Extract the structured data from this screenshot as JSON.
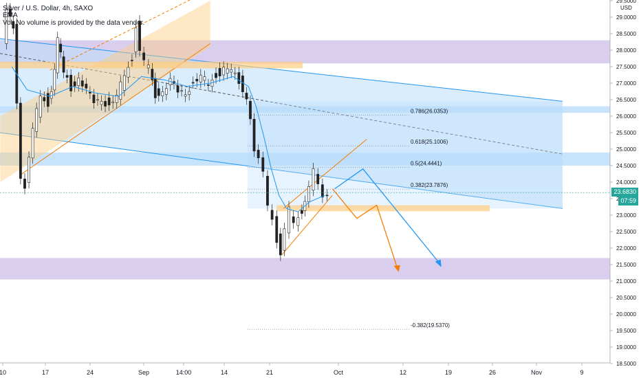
{
  "header": {
    "symbol_line": "Silver / U.S. Dollar, 4h, SAXO",
    "indicator": "EMA",
    "volume_note": "Vol: No volume is provided by the data vendor."
  },
  "axis": {
    "currency": "USD",
    "current_price": "23.6830",
    "countdown": "07:59"
  },
  "chart_data": {
    "type": "line",
    "title": "Silver / U.S. Dollar, 4h, SAXO",
    "xlabel": "",
    "ylabel": "",
    "ylim": [
      18.5,
      29.5
    ],
    "y_ticks": [
      "29.5000",
      "29.0000",
      "28.5000",
      "28.0000",
      "27.5000",
      "27.0000",
      "26.5000",
      "26.0000",
      "25.5000",
      "25.0000",
      "24.5000",
      "24.0000",
      "23.5000",
      "23.0000",
      "22.5000",
      "22.0000",
      "21.5000",
      "21.0000",
      "20.5000",
      "20.0000",
      "19.5000",
      "19.0000",
      "18.5000"
    ],
    "x_ticks": [
      "10",
      "17",
      "24",
      "Sep",
      "14:00",
      "14",
      "21",
      "Oct",
      "12",
      "19",
      "26",
      "Nov",
      "9"
    ],
    "price_path": [
      [
        0,
        28.2
      ],
      [
        0.6,
        29.1
      ],
      [
        1.4,
        28.8
      ],
      [
        2.4,
        24.2
      ],
      [
        3.0,
        23.9
      ],
      [
        4.0,
        25.5
      ],
      [
        5.0,
        26.7
      ],
      [
        6.0,
        26.4
      ],
      [
        6.8,
        27.3
      ],
      [
        7.2,
        28.3
      ],
      [
        8.0,
        27.3
      ],
      [
        9.0,
        26.9
      ],
      [
        10.0,
        27.2
      ],
      [
        11.0,
        26.7
      ],
      [
        12.0,
        26.4
      ],
      [
        13.0,
        26.6
      ],
      [
        14.0,
        26.3
      ],
      [
        15.0,
        26.5
      ],
      [
        16.0,
        27.3
      ],
      [
        17.0,
        27.8
      ],
      [
        17.5,
        28.8
      ],
      [
        18.0,
        28.0
      ],
      [
        18.6,
        27.6
      ],
      [
        19.2,
        27.4
      ],
      [
        20.0,
        26.7
      ],
      [
        21.0,
        26.8
      ],
      [
        22.0,
        27.0
      ],
      [
        23.0,
        26.7
      ],
      [
        24.0,
        26.8
      ],
      [
        25.0,
        27.0
      ],
      [
        26.0,
        27.1
      ],
      [
        27.0,
        27.0
      ],
      [
        28.0,
        27.3
      ],
      [
        29.0,
        27.4
      ],
      [
        30.0,
        27.3
      ],
      [
        31.0,
        27.1
      ],
      [
        32.0,
        26.6
      ],
      [
        32.5,
        26.0
      ],
      [
        33.0,
        24.9
      ],
      [
        33.6,
        24.6
      ],
      [
        34.2,
        24.2
      ],
      [
        34.8,
        23.3
      ],
      [
        35.4,
        23.0
      ],
      [
        36.0,
        22.3
      ],
      [
        36.4,
        21.8
      ],
      [
        37.0,
        22.5
      ],
      [
        37.6,
        23.1
      ],
      [
        38.2,
        22.7
      ],
      [
        38.8,
        23.0
      ],
      [
        39.6,
        23.4
      ],
      [
        40.2,
        23.9
      ],
      [
        40.8,
        24.3
      ],
      [
        41.4,
        23.8
      ],
      [
        42.0,
        23.5
      ],
      [
        42.6,
        23.7
      ]
    ],
    "ema_path": [
      [
        1,
        27.5
      ],
      [
        3,
        26.8
      ],
      [
        6,
        26.6
      ],
      [
        9,
        26.9
      ],
      [
        12,
        26.7
      ],
      [
        15,
        26.6
      ],
      [
        18,
        27.2
      ],
      [
        21,
        27.1
      ],
      [
        24,
        26.9
      ],
      [
        27,
        27.0
      ],
      [
        30,
        27.2
      ],
      [
        32,
        26.9
      ],
      [
        33,
        26.3
      ],
      [
        34,
        25.4
      ],
      [
        35,
        24.4
      ],
      [
        36,
        23.6
      ],
      [
        37,
        23.2
      ],
      [
        38.5,
        23.1
      ],
      [
        40,
        23.4
      ],
      [
        42,
        23.6
      ]
    ],
    "fibonacci": [
      {
        "label": "0.786(26.0353)",
        "value": 26.0353
      },
      {
        "label": "0.618(25.1006)",
        "value": 25.1006
      },
      {
        "label": "0.5(24.4441)",
        "value": 24.4441
      },
      {
        "label": "0.382(23.7876)",
        "value": 23.7876
      },
      {
        "label": "-0.382(19.5370)",
        "value": 19.537
      }
    ],
    "zones": [
      {
        "name": "resistance-zone",
        "from": 27.6,
        "to": 28.3,
        "color": "#b39ddb"
      },
      {
        "name": "level-26",
        "from": 26.1,
        "to": 26.3,
        "color": "#90caf9"
      },
      {
        "name": "level-24-6",
        "from": 24.5,
        "to": 24.9,
        "color": "#90caf9"
      },
      {
        "name": "support-zone",
        "from": 21.05,
        "to": 21.7,
        "color": "#b39ddb"
      }
    ],
    "colors": {
      "up": "#26a69a",
      "down": "#ef5350",
      "ema": "#2196f3",
      "channel": "#2196f3",
      "orange": "#f57c00",
      "fill_blue": "#bbdefb",
      "fill_orange": "#ffcc80"
    }
  }
}
